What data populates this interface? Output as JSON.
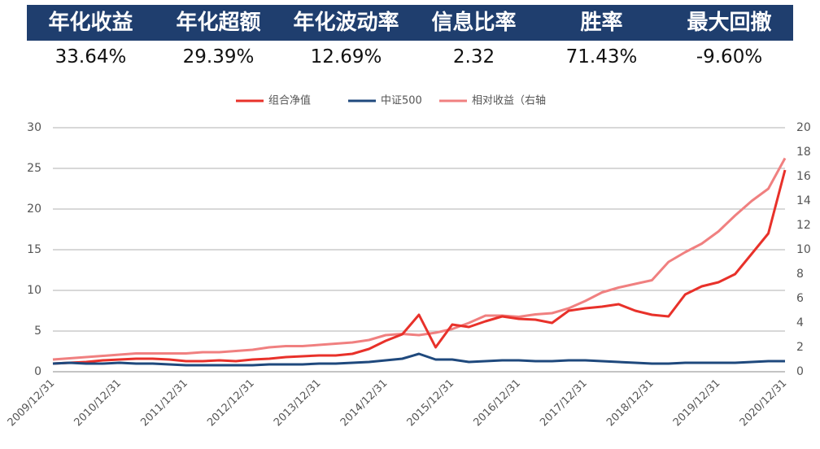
{
  "stats": {
    "headers": [
      "年化收益",
      "年化超额",
      "年化波动率",
      "信息比率",
      "胜率",
      "最大回撤"
    ],
    "values": [
      "33.64%",
      "29.39%",
      "12.69%",
      "2.32",
      "71.43%",
      "-9.60%"
    ]
  },
  "chart_data": {
    "type": "line",
    "categories": [
      "2009/12/31",
      null,
      null,
      null,
      "2010/12/31",
      null,
      null,
      null,
      "2011/12/31",
      null,
      null,
      null,
      "2012/12/31",
      null,
      null,
      null,
      "2013/12/31",
      null,
      null,
      null,
      "2014/12/31",
      null,
      null,
      null,
      "2015/12/31",
      null,
      null,
      null,
      "2016/12/31",
      null,
      null,
      null,
      "2017/12/31",
      null,
      null,
      null,
      "2018/12/31",
      null,
      null,
      null,
      "2019/12/31",
      null,
      null,
      null,
      "2020/12/31"
    ],
    "series": [
      {
        "name": "组合净值",
        "color": "#e8312a",
        "values": [
          1.0,
          1.1,
          1.2,
          1.4,
          1.5,
          1.6,
          1.6,
          1.5,
          1.3,
          1.3,
          1.4,
          1.3,
          1.5,
          1.6,
          1.8,
          1.9,
          2.0,
          2.0,
          2.2,
          2.8,
          3.8,
          4.6,
          7.0,
          3.0,
          5.8,
          5.5,
          6.2,
          6.8,
          6.5,
          6.4,
          6.0,
          7.5,
          7.8,
          8.0,
          8.3,
          7.5,
          7.0,
          6.8,
          9.5,
          10.5,
          11.0,
          12.0,
          14.5,
          17.0,
          24.8
        ]
      },
      {
        "name": "中证500",
        "color": "#1f497d",
        "values": [
          1.0,
          1.1,
          1.0,
          1.0,
          1.1,
          1.0,
          1.0,
          0.9,
          0.8,
          0.8,
          0.8,
          0.8,
          0.8,
          0.9,
          0.9,
          0.9,
          1.0,
          1.0,
          1.1,
          1.2,
          1.4,
          1.6,
          2.2,
          1.5,
          1.5,
          1.2,
          1.3,
          1.4,
          1.4,
          1.3,
          1.3,
          1.4,
          1.4,
          1.3,
          1.2,
          1.1,
          1.0,
          1.0,
          1.1,
          1.1,
          1.1,
          1.1,
          1.2,
          1.3,
          1.3
        ]
      },
      {
        "name": "相对收益（右轴",
        "color": "#f08080",
        "axis": "y2",
        "values": [
          1.0,
          1.1,
          1.2,
          1.3,
          1.4,
          1.5,
          1.5,
          1.5,
          1.5,
          1.6,
          1.6,
          1.7,
          1.8,
          2.0,
          2.1,
          2.1,
          2.2,
          2.3,
          2.4,
          2.6,
          3.0,
          3.1,
          3.0,
          3.2,
          3.5,
          4.0,
          4.6,
          4.6,
          4.5,
          4.7,
          4.8,
          5.2,
          5.8,
          6.5,
          6.9,
          7.2,
          7.5,
          9.0,
          9.8,
          10.5,
          11.5,
          12.8,
          14.0,
          15.0,
          17.5
        ]
      }
    ],
    "ylim": [
      0,
      30
    ],
    "yticks": [
      0,
      5,
      10,
      15,
      20,
      25,
      30
    ],
    "y2lim": [
      0,
      20
    ],
    "y2ticks": [
      0,
      2,
      4,
      6,
      8,
      10,
      12,
      14,
      16,
      18,
      20
    ],
    "grid": true,
    "legend": "top"
  }
}
